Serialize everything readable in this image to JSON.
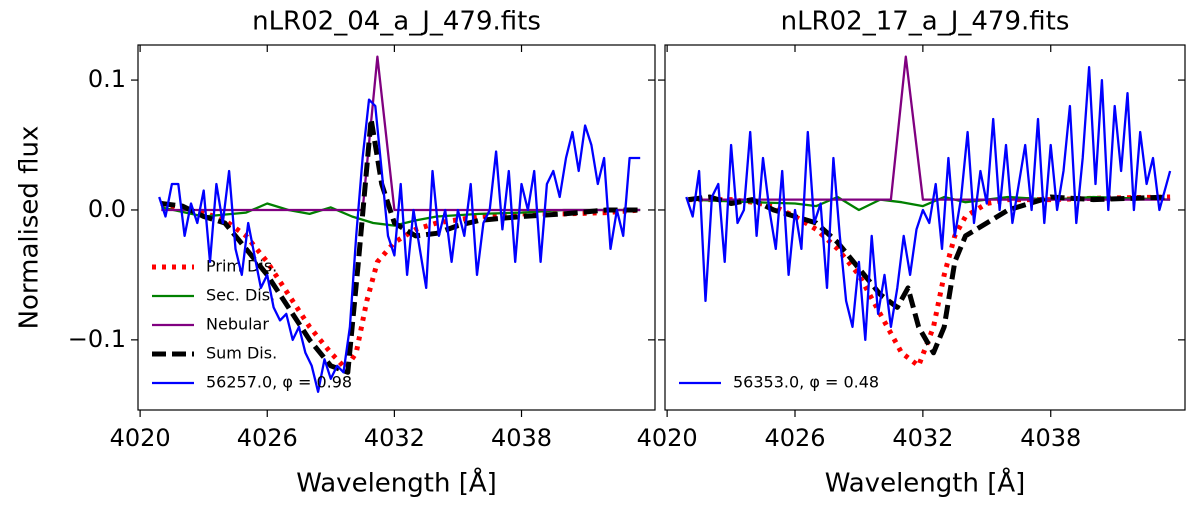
{
  "chart_data": [
    {
      "type": "line",
      "title": "nLR02_04_a_J_479.fits",
      "xlabel": "Wavelength [Å]",
      "ylabel": "Normalised flux",
      "xlim": [
        4019.9,
        4044.3
      ],
      "xticks": [
        4020,
        4026,
        4032,
        4038
      ],
      "ylim": [
        -0.154,
        0.127
      ],
      "yticks": [
        {
          "value": -0.1,
          "label": "−0.1"
        },
        {
          "value": 0,
          "label": "0.0"
        },
        0.1
      ],
      "ytick_labels": true,
      "legend": "lower left",
      "series": [
        {
          "name": "Prim Dis.",
          "color": "#ff0000",
          "dash": "dotted",
          "x": [
            4021,
            4022,
            4023,
            4024,
            4025,
            4026,
            4027,
            4028,
            4029,
            4029.7,
            4030.2,
            4030.7,
            4031.2,
            4032,
            4033,
            4034,
            4036,
            4038,
            4040,
            4042,
            4043.6
          ],
          "values": [
            0.005,
            0.0,
            -0.002,
            -0.008,
            -0.02,
            -0.04,
            -0.065,
            -0.09,
            -0.11,
            -0.122,
            -0.11,
            -0.07,
            -0.04,
            -0.025,
            -0.015,
            -0.01,
            -0.005,
            -0.003,
            -0.003,
            -0.002,
            0.0
          ]
        },
        {
          "name": "Sec. Dis.",
          "color": "#008000",
          "dash": "solid",
          "x": [
            4021,
            4023,
            4025,
            4026,
            4027,
            4028,
            4029,
            4030,
            4031,
            4032,
            4033,
            4034,
            4036,
            4038,
            4040,
            4043.6
          ],
          "values": [
            0.002,
            -0.005,
            -0.002,
            0.005,
            0.0,
            -0.003,
            0.002,
            -0.005,
            -0.01,
            -0.012,
            -0.008,
            -0.005,
            -0.003,
            -0.002,
            0.0,
            0.0
          ]
        },
        {
          "name": "Nebular",
          "color": "#800080",
          "dash": "solid",
          "x": [
            4021,
            4030.5,
            4031.2,
            4032,
            4043.6
          ],
          "values": [
            0,
            0,
            0.118,
            0,
            0
          ]
        },
        {
          "name": "Sum Dis.",
          "color": "#000000",
          "dash": "dashed",
          "x": [
            4021,
            4022,
            4023,
            4024,
            4025,
            4026,
            4027,
            4028,
            4029,
            4029.8,
            4030.3,
            4030.9,
            4031.4,
            4032,
            4033,
            4034,
            4035,
            4036,
            4038,
            4040,
            4042,
            4043.6
          ],
          "values": [
            0.005,
            0.003,
            -0.005,
            -0.01,
            -0.03,
            -0.05,
            -0.075,
            -0.1,
            -0.12,
            -0.125,
            -0.04,
            0.07,
            0.02,
            -0.01,
            -0.02,
            -0.018,
            -0.012,
            -0.008,
            -0.005,
            -0.003,
            0.0,
            0.0
          ]
        },
        {
          "name": "56257.0, φ = 0.98",
          "color": "#0000ff",
          "dash": "solid",
          "x": [
            4020.9,
            4021.2,
            4021.5,
            4021.8,
            4022.1,
            4022.4,
            4022.7,
            4023.0,
            4023.3,
            4023.6,
            4023.9,
            4024.2,
            4024.5,
            4024.8,
            4025.1,
            4025.4,
            4025.7,
            4026.0,
            4026.3,
            4026.6,
            4026.9,
            4027.2,
            4027.5,
            4027.8,
            4028.1,
            4028.4,
            4028.7,
            4029.0,
            4029.3,
            4029.6,
            4029.9,
            4030.2,
            4030.5,
            4030.8,
            4031.1,
            4031.4,
            4031.7,
            4032.0,
            4032.3,
            4032.6,
            4032.9,
            4033.2,
            4033.5,
            4033.8,
            4034.1,
            4034.4,
            4034.7,
            4035.0,
            4035.3,
            4035.6,
            4035.9,
            4036.2,
            4036.5,
            4036.8,
            4037.1,
            4037.4,
            4037.7,
            4038.0,
            4038.3,
            4038.6,
            4038.9,
            4039.2,
            4039.5,
            4039.8,
            4040.1,
            4040.4,
            4040.7,
            4041.0,
            4041.3,
            4041.6,
            4041.9,
            4042.2,
            4042.5,
            4042.8,
            4043.1,
            4043.6
          ],
          "values": [
            0.01,
            -0.005,
            0.02,
            0.02,
            -0.02,
            0.005,
            -0.01,
            0.015,
            -0.04,
            0.02,
            -0.01,
            0.03,
            -0.03,
            -0.05,
            -0.01,
            -0.035,
            -0.06,
            -0.05,
            -0.075,
            -0.085,
            -0.08,
            -0.1,
            -0.09,
            -0.11,
            -0.12,
            -0.14,
            -0.115,
            -0.13,
            -0.12,
            -0.125,
            -0.09,
            -0.02,
            0.04,
            0.085,
            0.08,
            0.03,
            -0.02,
            -0.035,
            0.02,
            -0.05,
            0.0,
            -0.03,
            -0.06,
            0.03,
            -0.02,
            0.0,
            -0.04,
            0.0,
            -0.02,
            0.02,
            -0.05,
            -0.01,
            0.0,
            0.045,
            -0.015,
            0.03,
            -0.04,
            0.02,
            0.0,
            0.03,
            -0.04,
            0.02,
            0.03,
            0.01,
            0.04,
            0.06,
            0.03,
            0.065,
            0.05,
            0.02,
            0.04,
            -0.03,
            0.0,
            -0.02,
            0.04,
            0.04
          ]
        }
      ]
    },
    {
      "type": "line",
      "title": "nLR02_17_a_J_479.fits",
      "xlabel": "Wavelength [Å]",
      "xlim": [
        4019.9,
        4044.3
      ],
      "xticks": [
        4020,
        4026,
        4032,
        4038
      ],
      "ylim": [
        -0.154,
        0.127
      ],
      "yticks": [
        -0.1,
        0,
        0.1
      ],
      "ytick_labels": false,
      "legend": "lower left",
      "series": [
        {
          "color": "#ff0000",
          "dash": "dotted",
          "x": [
            4021,
            4023,
            4024,
            4025,
            4026,
            4027,
            4028,
            4029,
            4030,
            4031,
            4031.8,
            4032.5,
            4033,
            4033.5,
            4034,
            4035,
            4036,
            4038,
            4040,
            4043.6
          ],
          "values": [
            0.008,
            0.008,
            0.006,
            0.003,
            -0.005,
            -0.015,
            -0.03,
            -0.05,
            -0.08,
            -0.11,
            -0.12,
            -0.09,
            -0.05,
            -0.02,
            -0.005,
            0.005,
            0.008,
            0.008,
            0.009,
            0.01
          ]
        },
        {
          "color": "#008000",
          "dash": "solid",
          "x": [
            4021,
            4024,
            4026,
            4027,
            4028,
            4029,
            4030,
            4031,
            4032,
            4033,
            4034,
            4036,
            4038,
            4040,
            4043.6
          ],
          "values": [
            0.008,
            0.006,
            0.005,
            0.003,
            0.01,
            0.0,
            0.008,
            0.006,
            0.003,
            0.01,
            0.006,
            0.01,
            0.008,
            0.01,
            0.008
          ]
        },
        {
          "color": "#800080",
          "dash": "solid",
          "x": [
            4021,
            4030.5,
            4031.2,
            4032,
            4043.6
          ],
          "values": [
            0.008,
            0.008,
            0.118,
            0.008,
            0.008
          ]
        },
        {
          "color": "#000000",
          "dash": "dashed",
          "x": [
            4021,
            4022,
            4023,
            4024,
            4025,
            4026,
            4027,
            4028,
            4029,
            4030,
            4030.8,
            4031.3,
            4031.8,
            4032.5,
            4033,
            4033.5,
            4034,
            4035,
            4036,
            4037,
            4038,
            4040,
            4043.6
          ],
          "values": [
            0.008,
            0.01,
            0.005,
            0.008,
            0.0,
            -0.005,
            -0.01,
            -0.025,
            -0.045,
            -0.065,
            -0.075,
            -0.06,
            -0.09,
            -0.11,
            -0.09,
            -0.04,
            -0.02,
            -0.01,
            0.0,
            0.005,
            0.01,
            0.008,
            0.01
          ]
        },
        {
          "name": "56353.0, φ = 0.48",
          "color": "#0000ff",
          "dash": "solid",
          "x": [
            4020.9,
            4021.2,
            4021.5,
            4021.8,
            4022.1,
            4022.4,
            4022.7,
            4023.0,
            4023.3,
            4023.6,
            4023.9,
            4024.2,
            4024.5,
            4024.8,
            4025.1,
            4025.4,
            4025.7,
            4026.0,
            4026.3,
            4026.6,
            4026.9,
            4027.2,
            4027.5,
            4027.8,
            4028.1,
            4028.4,
            4028.7,
            4029.0,
            4029.3,
            4029.6,
            4029.9,
            4030.2,
            4030.5,
            4030.8,
            4031.1,
            4031.4,
            4031.7,
            4032.0,
            4032.3,
            4032.6,
            4032.9,
            4033.2,
            4033.5,
            4033.8,
            4034.1,
            4034.4,
            4034.7,
            4035.0,
            4035.3,
            4035.6,
            4035.9,
            4036.2,
            4036.5,
            4036.8,
            4037.1,
            4037.4,
            4037.7,
            4038.0,
            4038.3,
            4038.6,
            4038.9,
            4039.2,
            4039.5,
            4039.8,
            4040.1,
            4040.4,
            4040.7,
            4041.0,
            4041.3,
            4041.6,
            4041.9,
            4042.2,
            4042.5,
            4042.8,
            4043.1,
            4043.6
          ],
          "values": [
            0.01,
            -0.005,
            0.03,
            -0.07,
            0.01,
            0.02,
            -0.04,
            0.05,
            -0.01,
            0.0,
            0.06,
            -0.02,
            0.04,
            0.0,
            -0.03,
            0.03,
            -0.05,
            0.0,
            -0.03,
            0.06,
            -0.01,
            0.005,
            -0.06,
            0.04,
            -0.02,
            -0.07,
            -0.09,
            -0.04,
            -0.1,
            -0.02,
            -0.08,
            -0.05,
            -0.09,
            -0.06,
            -0.02,
            -0.05,
            -0.015,
            0.0,
            -0.01,
            0.02,
            -0.03,
            0.04,
            -0.02,
            0.01,
            0.06,
            -0.01,
            0.03,
            0.005,
            0.07,
            0.0,
            0.05,
            -0.01,
            0.02,
            0.05,
            0.0,
            0.07,
            -0.01,
            0.05,
            0.0,
            0.03,
            0.08,
            -0.01,
            0.04,
            0.11,
            0.02,
            0.1,
            0.0,
            0.08,
            0.03,
            0.09,
            0.0,
            0.06,
            0.02,
            0.04,
            0.0,
            0.03
          ]
        }
      ]
    }
  ]
}
